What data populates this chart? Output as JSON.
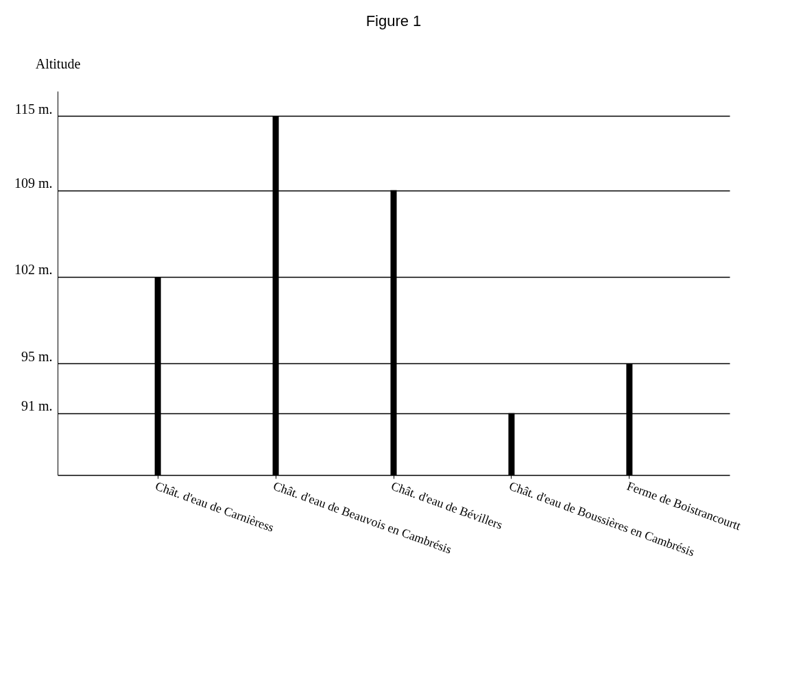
{
  "chart_data": {
    "type": "bar",
    "title": "Figure 1",
    "ylabel": "Altitude",
    "categories": [
      "Chât. d'eau de Carnièress",
      "Chât. d'eau de Beauvois en Cambrésis",
      "Chât. d'eau de  Bévillers",
      "Chât. d'eau de  Boussières en Cambrésis",
      "Ferme de Boistrancourtt"
    ],
    "values": [
      102,
      115,
      109,
      91,
      95
    ],
    "color": "#000000",
    "ylim": [
      86,
      117
    ],
    "yticks": [
      {
        "value": 91,
        "label": "91 m."
      },
      {
        "value": 95,
        "label": "95 m."
      },
      {
        "value": 102,
        "label": "102 m."
      },
      {
        "value": 109,
        "label": "109 m."
      },
      {
        "value": 115,
        "label": "115 m."
      }
    ],
    "grid": "y"
  }
}
